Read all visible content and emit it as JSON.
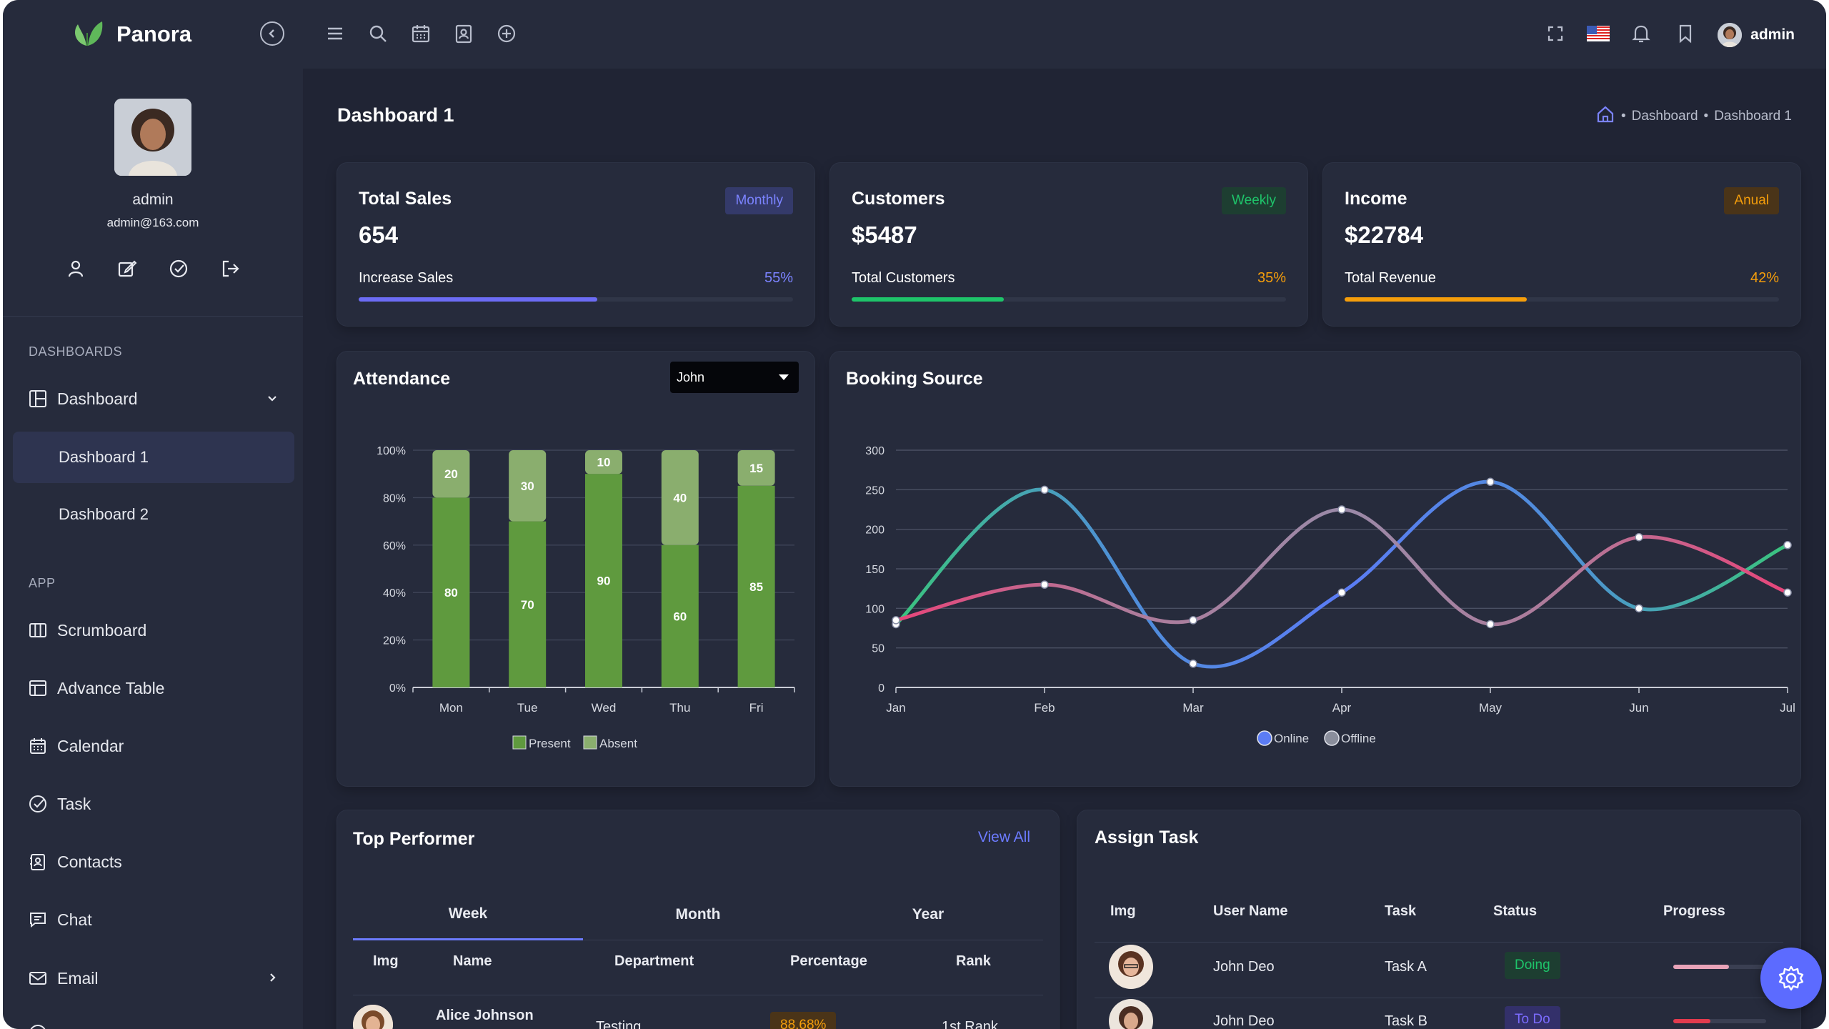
{
  "app": {
    "name": "Panora"
  },
  "user": {
    "name": "admin",
    "email": "admin@163.com"
  },
  "sidebar": {
    "sections": {
      "dashboards": "DASHBOARDS",
      "app": "APP"
    },
    "dashboard": {
      "label": "Dashboard",
      "subitems": [
        "Dashboard 1",
        "Dashboard 2"
      ],
      "active": "Dashboard 1"
    },
    "items": [
      "Scrumboard",
      "Advance Table",
      "Calendar",
      "Task",
      "Contacts",
      "Chat",
      "Email"
    ]
  },
  "topbar": {
    "user_label": "admin",
    "language": "us-flag-icon"
  },
  "page": {
    "title": "Dashboard 1",
    "breadcrumb": [
      "Dashboard",
      "Dashboard 1"
    ]
  },
  "stats": [
    {
      "title": "Total Sales",
      "value": "654",
      "badge": "Monthly",
      "label": "Increase Sales",
      "percent_text": "55%",
      "percent": 55,
      "color": "#6c6cf5"
    },
    {
      "title": "Customers",
      "value": "$5487",
      "badge": "Weekly",
      "label": "Total Customers",
      "percent_text": "35%",
      "percent": 35,
      "color": "#1ec46a"
    },
    {
      "title": "Income",
      "value": "$22784",
      "badge": "Anual",
      "label": "Total Revenue",
      "percent_text": "42%",
      "percent": 42,
      "color": "#f59e0b"
    }
  ],
  "attendance": {
    "title": "Attendance",
    "selected": "John"
  },
  "booking": {
    "title": "Booking Source"
  },
  "top_performer": {
    "title": "Top Performer",
    "view_all": "View All",
    "tabs": [
      "Week",
      "Month",
      "Year"
    ],
    "active_tab": "Week",
    "columns": [
      "Img",
      "Name",
      "Department",
      "Percentage",
      "Rank"
    ],
    "rows": [
      {
        "name": "Alice Johnson",
        "department": "Testing",
        "percentage": "88.68%",
        "rank": "1st Rank"
      }
    ]
  },
  "assign_task": {
    "title": "Assign Task",
    "columns": [
      "Img",
      "User Name",
      "Task",
      "Status",
      "Progress"
    ],
    "rows": [
      {
        "user": "John Deo",
        "task": "Task A",
        "status": "Doing",
        "progress": 0.6,
        "color": "#e8a3b8"
      },
      {
        "user": "John Deo",
        "task": "Task B",
        "status": "To Do",
        "progress": 0.4,
        "color": "#e23b4e"
      }
    ]
  },
  "chart_data": [
    {
      "type": "bar",
      "title": "Attendance",
      "stacked": true,
      "categories": [
        "Mon",
        "Tue",
        "Wed",
        "Thu",
        "Fri"
      ],
      "series": [
        {
          "name": "Present",
          "values": [
            80,
            70,
            90,
            60,
            85
          ],
          "color": "#5f9a3e"
        },
        {
          "name": "Absent",
          "values": [
            20,
            30,
            10,
            40,
            15
          ],
          "color": "#8aae6e"
        }
      ],
      "y_ticks": [
        "0%",
        "20%",
        "40%",
        "60%",
        "80%",
        "100%"
      ],
      "ylim": [
        0,
        100
      ],
      "legend": "bottom",
      "grid": true
    },
    {
      "type": "line",
      "title": "Booking Source",
      "categories": [
        "Jan",
        "Feb",
        "Mar",
        "Apr",
        "May",
        "Jun",
        "Jul"
      ],
      "series": [
        {
          "name": "Online",
          "values": [
            80,
            250,
            30,
            120,
            260,
            100,
            180
          ]
        },
        {
          "name": "Offline",
          "values": [
            85,
            130,
            85,
            225,
            80,
            190,
            120
          ]
        }
      ],
      "y_ticks": [
        0,
        50,
        100,
        150,
        200,
        250,
        300
      ],
      "ylim": [
        0,
        300
      ],
      "legend": "bottom",
      "grid": true
    }
  ]
}
